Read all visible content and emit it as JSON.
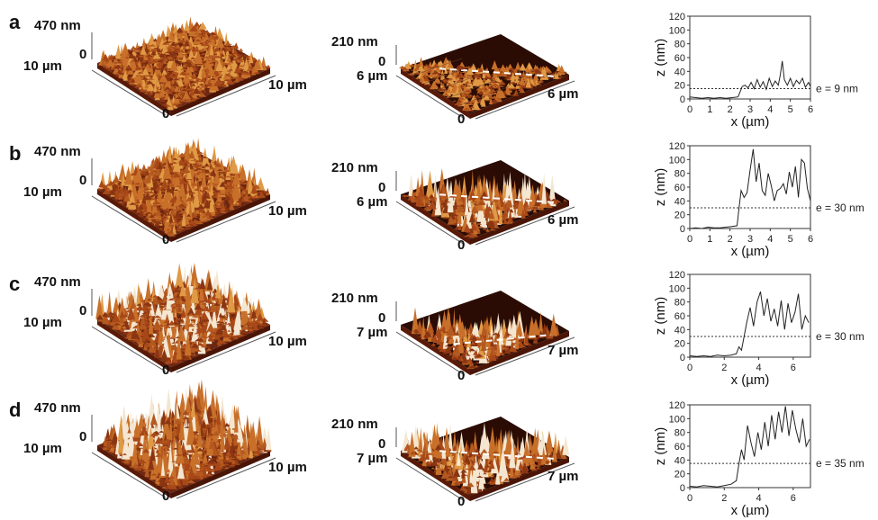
{
  "rows": [
    {
      "label": "a",
      "afm_large": {
        "z_label": "470 nm",
        "z_zero": "0",
        "y_label": "10 µm",
        "x_label": "10 µm",
        "origin": "0"
      },
      "afm_small": {
        "z_label": "210 nm",
        "z_zero": "0",
        "y_label": "6 µm",
        "x_label": "6 µm",
        "origin": "0"
      },
      "profile": {
        "e_label": "e = 9 nm"
      }
    },
    {
      "label": "b",
      "afm_large": {
        "z_label": "470 nm",
        "z_zero": "0",
        "y_label": "10 µm",
        "x_label": "10 µm",
        "origin": "0"
      },
      "afm_small": {
        "z_label": "210 nm",
        "z_zero": "0",
        "y_label": "6 µm",
        "x_label": "6 µm",
        "origin": "0"
      },
      "profile": {
        "e_label": "e = 30 nm"
      }
    },
    {
      "label": "c",
      "afm_large": {
        "z_label": "470 nm",
        "z_zero": "0",
        "y_label": "10 µm",
        "x_label": "10 µm",
        "origin": "0"
      },
      "afm_small": {
        "z_label": "210 nm",
        "z_zero": "0",
        "y_label": "7 µm",
        "x_label": "7 µm",
        "origin": "0"
      },
      "profile": {
        "e_label": "e = 30 nm"
      }
    },
    {
      "label": "d",
      "afm_large": {
        "z_label": "470 nm",
        "z_zero": "0",
        "y_label": "10 µm",
        "x_label": "10 µm",
        "origin": "0"
      },
      "afm_small": {
        "z_label": "210 nm",
        "z_zero": "0",
        "y_label": "7 µm",
        "x_label": "7 µm",
        "origin": "0"
      },
      "profile": {
        "e_label": "e = 35 nm"
      }
    }
  ],
  "chart_data": [
    {
      "type": "line",
      "panel": "a",
      "xlabel": "x (µm)",
      "ylabel": "z (nm)",
      "xlim": [
        0,
        6
      ],
      "ylim": [
        0,
        120
      ],
      "xticks": [
        0,
        1,
        2,
        3,
        4,
        5,
        6
      ],
      "yticks": [
        0,
        20,
        40,
        60,
        80,
        100,
        120
      ],
      "series": [
        {
          "x": [
            0,
            0.3,
            0.6,
            0.9,
            1.2,
            1.5,
            1.8,
            2.1,
            2.4,
            2.55,
            2.6,
            2.75,
            2.9,
            3.05,
            3.2,
            3.35,
            3.5,
            3.65,
            3.8,
            3.95,
            4.1,
            4.25,
            4.4,
            4.5,
            4.6,
            4.7,
            4.85,
            5.0,
            5.15,
            5.3,
            5.45,
            5.6,
            5.75,
            5.9,
            6.0
          ],
          "y": [
            3,
            2,
            1,
            2,
            1,
            2,
            1,
            2,
            3,
            14,
            18,
            20,
            16,
            24,
            15,
            28,
            17,
            25,
            14,
            30,
            18,
            26,
            20,
            35,
            55,
            28,
            20,
            30,
            18,
            27,
            22,
            30,
            17,
            24,
            18
          ]
        }
      ],
      "threshold": 15,
      "annotation": "e = 9 nm"
    },
    {
      "type": "line",
      "panel": "b",
      "xlabel": "x (µm)",
      "ylabel": "z (nm)",
      "xlim": [
        0,
        6
      ],
      "ylim": [
        0,
        120
      ],
      "xticks": [
        0,
        1,
        2,
        3,
        4,
        5,
        6
      ],
      "yticks": [
        0,
        20,
        40,
        60,
        80,
        100,
        120
      ],
      "series": [
        {
          "x": [
            0,
            0.3,
            0.6,
            0.9,
            1.2,
            1.5,
            1.8,
            2.1,
            2.35,
            2.45,
            2.55,
            2.7,
            2.85,
            3.0,
            3.15,
            3.3,
            3.45,
            3.6,
            3.75,
            3.9,
            4.05,
            4.2,
            4.35,
            4.5,
            4.65,
            4.8,
            4.95,
            5.1,
            5.25,
            5.4,
            5.55,
            5.7,
            5.85,
            6.0
          ],
          "y": [
            0,
            1,
            0,
            2,
            1,
            1,
            2,
            3,
            4,
            30,
            55,
            45,
            52,
            85,
            115,
            68,
            95,
            55,
            48,
            80,
            62,
            40,
            55,
            58,
            65,
            50,
            82,
            60,
            90,
            45,
            100,
            95,
            58,
            40
          ]
        }
      ],
      "threshold": 30,
      "annotation": "e = 30 nm"
    },
    {
      "type": "line",
      "panel": "c",
      "xlabel": "x (µm)",
      "ylabel": "z (nm)",
      "xlim": [
        0,
        7
      ],
      "ylim": [
        0,
        120
      ],
      "xticks": [
        0,
        2,
        4,
        6
      ],
      "yticks": [
        0,
        20,
        40,
        60,
        80,
        100,
        120
      ],
      "series": [
        {
          "x": [
            0,
            0.4,
            0.8,
            1.2,
            1.6,
            2.0,
            2.4,
            2.7,
            2.85,
            3.0,
            3.15,
            3.3,
            3.5,
            3.7,
            3.9,
            4.1,
            4.3,
            4.5,
            4.7,
            4.9,
            5.1,
            5.3,
            5.5,
            5.7,
            5.9,
            6.1,
            6.3,
            6.5,
            6.7,
            6.9
          ],
          "y": [
            2,
            1,
            2,
            1,
            3,
            2,
            3,
            5,
            15,
            10,
            30,
            50,
            72,
            45,
            80,
            95,
            60,
            85,
            52,
            70,
            45,
            82,
            40,
            78,
            50,
            65,
            92,
            40,
            60,
            50
          ]
        }
      ],
      "threshold": 30,
      "annotation": "e = 30 nm"
    },
    {
      "type": "line",
      "panel": "d",
      "xlabel": "x (µm)",
      "ylabel": "z (nm)",
      "xlim": [
        0,
        7
      ],
      "ylim": [
        0,
        120
      ],
      "xticks": [
        0,
        2,
        4,
        6
      ],
      "yticks": [
        0,
        20,
        40,
        60,
        80,
        100,
        120
      ],
      "series": [
        {
          "x": [
            0,
            0.4,
            0.8,
            1.2,
            1.6,
            2.0,
            2.4,
            2.7,
            2.85,
            3.0,
            3.15,
            3.35,
            3.55,
            3.75,
            3.95,
            4.15,
            4.35,
            4.55,
            4.75,
            4.95,
            5.15,
            5.35,
            5.55,
            5.75,
            5.95,
            6.15,
            6.35,
            6.55,
            6.75,
            6.95
          ],
          "y": [
            2,
            1,
            3,
            2,
            1,
            3,
            5,
            10,
            35,
            55,
            40,
            90,
            65,
            45,
            80,
            55,
            95,
            60,
            105,
            70,
            110,
            80,
            118,
            75,
            112,
            85,
            65,
            100,
            60,
            70
          ]
        }
      ],
      "threshold": 35,
      "annotation": "e = 35 nm"
    }
  ]
}
